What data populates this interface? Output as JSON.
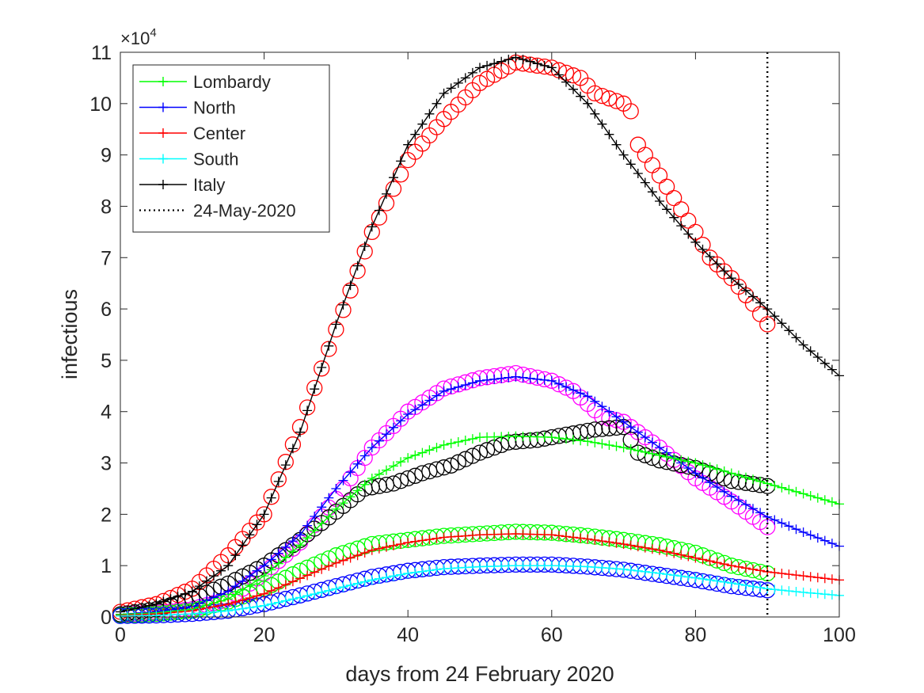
{
  "chart_data": {
    "type": "line",
    "xlabel": "days from 24 February 2020",
    "ylabel": "infectious",
    "exponent_label": "×10",
    "exponent_power": "4",
    "xlim": [
      0,
      100
    ],
    "ylim": [
      0,
      11
    ],
    "xticks": [
      0,
      20,
      40,
      60,
      80,
      100
    ],
    "yticks": [
      0,
      1,
      2,
      3,
      4,
      5,
      6,
      7,
      8,
      9,
      10,
      11
    ],
    "xtick_labels": [
      "0",
      "20",
      "40",
      "60",
      "80",
      "100"
    ],
    "ytick_labels": [
      "0",
      "1",
      "2",
      "3",
      "4",
      "5",
      "6",
      "7",
      "8",
      "9",
      "10",
      "11"
    ],
    "grid": false,
    "legend_position": "top-left",
    "legend": [
      {
        "label": "Lombardy",
        "color": "#00ff00",
        "style": "solid-plus"
      },
      {
        "label": "North",
        "color": "#0000ff",
        "style": "solid-plus"
      },
      {
        "label": "Center",
        "color": "#ff0000",
        "style": "solid-plus"
      },
      {
        "label": "South",
        "color": "#00ffff",
        "style": "solid-plus"
      },
      {
        "label": "Italy",
        "color": "#000000",
        "style": "solid-plus"
      },
      {
        "label": "24-May-2020",
        "color": "#000000",
        "style": "dotted"
      }
    ],
    "vline": {
      "x": 90,
      "label": "24-May-2020"
    },
    "model_series": [
      {
        "name": "Italy",
        "color": "#000000",
        "marker": "+",
        "points": [
          [
            0,
            0.1
          ],
          [
            5,
            0.25
          ],
          [
            10,
            0.5
          ],
          [
            15,
            1.0
          ],
          [
            20,
            2.0
          ],
          [
            25,
            3.6
          ],
          [
            30,
            5.7
          ],
          [
            35,
            7.6
          ],
          [
            40,
            9.2
          ],
          [
            45,
            10.2
          ],
          [
            50,
            10.7
          ],
          [
            55,
            10.9
          ],
          [
            60,
            10.7
          ],
          [
            65,
            10.0
          ],
          [
            70,
            9.0
          ],
          [
            75,
            8.1
          ],
          [
            80,
            7.3
          ],
          [
            85,
            6.6
          ],
          [
            90,
            6.0
          ],
          [
            95,
            5.3
          ],
          [
            100,
            4.7
          ]
        ]
      },
      {
        "name": "North",
        "color": "#0000ff",
        "marker": "+",
        "points": [
          [
            0,
            0.05
          ],
          [
            5,
            0.1
          ],
          [
            10,
            0.2
          ],
          [
            15,
            0.5
          ],
          [
            20,
            1.0
          ],
          [
            25,
            1.6
          ],
          [
            30,
            2.5
          ],
          [
            35,
            3.3
          ],
          [
            40,
            3.95
          ],
          [
            45,
            4.4
          ],
          [
            50,
            4.6
          ],
          [
            55,
            4.68
          ],
          [
            60,
            4.6
          ],
          [
            65,
            4.3
          ],
          [
            70,
            3.8
          ],
          [
            75,
            3.3
          ],
          [
            80,
            2.8
          ],
          [
            85,
            2.35
          ],
          [
            90,
            1.95
          ],
          [
            95,
            1.65
          ],
          [
            100,
            1.38
          ]
        ]
      },
      {
        "name": "Lombardy",
        "color": "#00ff00",
        "marker": "+",
        "points": [
          [
            0,
            0.05
          ],
          [
            5,
            0.08
          ],
          [
            10,
            0.15
          ],
          [
            15,
            0.35
          ],
          [
            20,
            0.8
          ],
          [
            25,
            1.4
          ],
          [
            30,
            2.1
          ],
          [
            35,
            2.7
          ],
          [
            40,
            3.1
          ],
          [
            45,
            3.35
          ],
          [
            50,
            3.5
          ],
          [
            55,
            3.52
          ],
          [
            60,
            3.5
          ],
          [
            65,
            3.42
          ],
          [
            70,
            3.3
          ],
          [
            75,
            3.15
          ],
          [
            80,
            3.0
          ],
          [
            85,
            2.8
          ],
          [
            90,
            2.6
          ],
          [
            95,
            2.4
          ],
          [
            100,
            2.2
          ]
        ]
      },
      {
        "name": "Center",
        "color": "#ff0000",
        "marker": "+",
        "points": [
          [
            0,
            0.03
          ],
          [
            5,
            0.06
          ],
          [
            10,
            0.12
          ],
          [
            15,
            0.25
          ],
          [
            20,
            0.45
          ],
          [
            25,
            0.75
          ],
          [
            30,
            1.05
          ],
          [
            35,
            1.3
          ],
          [
            40,
            1.45
          ],
          [
            45,
            1.55
          ],
          [
            50,
            1.6
          ],
          [
            55,
            1.62
          ],
          [
            60,
            1.6
          ],
          [
            65,
            1.52
          ],
          [
            70,
            1.42
          ],
          [
            75,
            1.3
          ],
          [
            80,
            1.15
          ],
          [
            85,
            1.0
          ],
          [
            90,
            0.88
          ],
          [
            95,
            0.8
          ],
          [
            100,
            0.72
          ]
        ]
      },
      {
        "name": "South",
        "color": "#00ffff",
        "marker": "+",
        "points": [
          [
            0,
            0.02
          ],
          [
            5,
            0.03
          ],
          [
            10,
            0.06
          ],
          [
            15,
            0.12
          ],
          [
            20,
            0.22
          ],
          [
            25,
            0.38
          ],
          [
            30,
            0.55
          ],
          [
            35,
            0.72
          ],
          [
            40,
            0.85
          ],
          [
            45,
            0.94
          ],
          [
            50,
            0.98
          ],
          [
            55,
            1.0
          ],
          [
            60,
            1.0
          ],
          [
            65,
            0.98
          ],
          [
            70,
            0.93
          ],
          [
            75,
            0.85
          ],
          [
            80,
            0.76
          ],
          [
            85,
            0.66
          ],
          [
            90,
            0.55
          ],
          [
            95,
            0.48
          ],
          [
            100,
            0.42
          ]
        ]
      }
    ],
    "observed_series": [
      {
        "name": "Italy observed",
        "color": "#ff0000",
        "marker": "o",
        "end": 90,
        "points": [
          [
            0,
            0.1
          ],
          [
            5,
            0.25
          ],
          [
            10,
            0.55
          ],
          [
            15,
            1.2
          ],
          [
            20,
            2.0
          ],
          [
            25,
            3.7
          ],
          [
            30,
            5.6
          ],
          [
            35,
            7.5
          ],
          [
            40,
            8.9
          ],
          [
            45,
            9.7
          ],
          [
            50,
            10.4
          ],
          [
            55,
            10.8
          ],
          [
            60,
            10.7
          ],
          [
            64,
            10.5
          ],
          [
            66,
            10.2
          ],
          [
            70,
            10.0
          ],
          [
            71,
            9.85
          ],
          [
            72,
            9.2
          ],
          [
            75,
            8.6
          ],
          [
            80,
            7.5
          ],
          [
            82,
            7.0
          ],
          [
            85,
            6.6
          ],
          [
            88,
            6.1
          ],
          [
            90,
            5.7
          ]
        ]
      },
      {
        "name": "North observed",
        "color": "#ff00ff",
        "marker": "o",
        "end": 90,
        "points": [
          [
            0,
            0.05
          ],
          [
            5,
            0.08
          ],
          [
            10,
            0.15
          ],
          [
            15,
            0.35
          ],
          [
            20,
            0.85
          ],
          [
            25,
            1.45
          ],
          [
            30,
            2.3
          ],
          [
            35,
            3.3
          ],
          [
            40,
            4.0
          ],
          [
            45,
            4.45
          ],
          [
            50,
            4.65
          ],
          [
            55,
            4.75
          ],
          [
            60,
            4.6
          ],
          [
            63,
            4.4
          ],
          [
            67,
            3.9
          ],
          [
            70,
            3.8
          ],
          [
            75,
            3.3
          ],
          [
            80,
            2.7
          ],
          [
            85,
            2.25
          ],
          [
            90,
            1.75
          ]
        ]
      },
      {
        "name": "Lombardy observed",
        "color": "#000000",
        "marker": "o",
        "end": 90,
        "points": [
          [
            0,
            0.05
          ],
          [
            5,
            0.15
          ],
          [
            10,
            0.35
          ],
          [
            15,
            0.65
          ],
          [
            20,
            1.0
          ],
          [
            25,
            1.5
          ],
          [
            30,
            2.05
          ],
          [
            34,
            2.5
          ],
          [
            38,
            2.6
          ],
          [
            42,
            2.8
          ],
          [
            46,
            2.95
          ],
          [
            50,
            3.2
          ],
          [
            54,
            3.4
          ],
          [
            58,
            3.45
          ],
          [
            62,
            3.55
          ],
          [
            66,
            3.65
          ],
          [
            70,
            3.7
          ],
          [
            72,
            3.2
          ],
          [
            75,
            3.05
          ],
          [
            80,
            2.9
          ],
          [
            85,
            2.65
          ],
          [
            90,
            2.55
          ]
        ]
      },
      {
        "name": "Center observed",
        "color": "#00ff00",
        "marker": "o",
        "end": 90,
        "points": [
          [
            0,
            0.03
          ],
          [
            5,
            0.06
          ],
          [
            10,
            0.12
          ],
          [
            15,
            0.3
          ],
          [
            20,
            0.55
          ],
          [
            25,
            0.9
          ],
          [
            30,
            1.2
          ],
          [
            35,
            1.42
          ],
          [
            40,
            1.5
          ],
          [
            45,
            1.58
          ],
          [
            50,
            1.62
          ],
          [
            55,
            1.66
          ],
          [
            60,
            1.64
          ],
          [
            65,
            1.58
          ],
          [
            70,
            1.5
          ],
          [
            75,
            1.4
          ],
          [
            80,
            1.25
          ],
          [
            85,
            1.0
          ],
          [
            90,
            0.85
          ]
        ]
      },
      {
        "name": "South observed",
        "color": "#0000ff",
        "marker": "o",
        "end": 90,
        "points": [
          [
            0,
            0.02
          ],
          [
            5,
            0.03
          ],
          [
            10,
            0.06
          ],
          [
            15,
            0.12
          ],
          [
            20,
            0.25
          ],
          [
            25,
            0.42
          ],
          [
            30,
            0.6
          ],
          [
            35,
            0.78
          ],
          [
            40,
            0.9
          ],
          [
            45,
            0.97
          ],
          [
            50,
            1.0
          ],
          [
            55,
            1.02
          ],
          [
            60,
            1.02
          ],
          [
            65,
            0.98
          ],
          [
            70,
            0.92
          ],
          [
            75,
            0.82
          ],
          [
            80,
            0.72
          ],
          [
            85,
            0.6
          ],
          [
            90,
            0.52
          ]
        ]
      }
    ]
  }
}
